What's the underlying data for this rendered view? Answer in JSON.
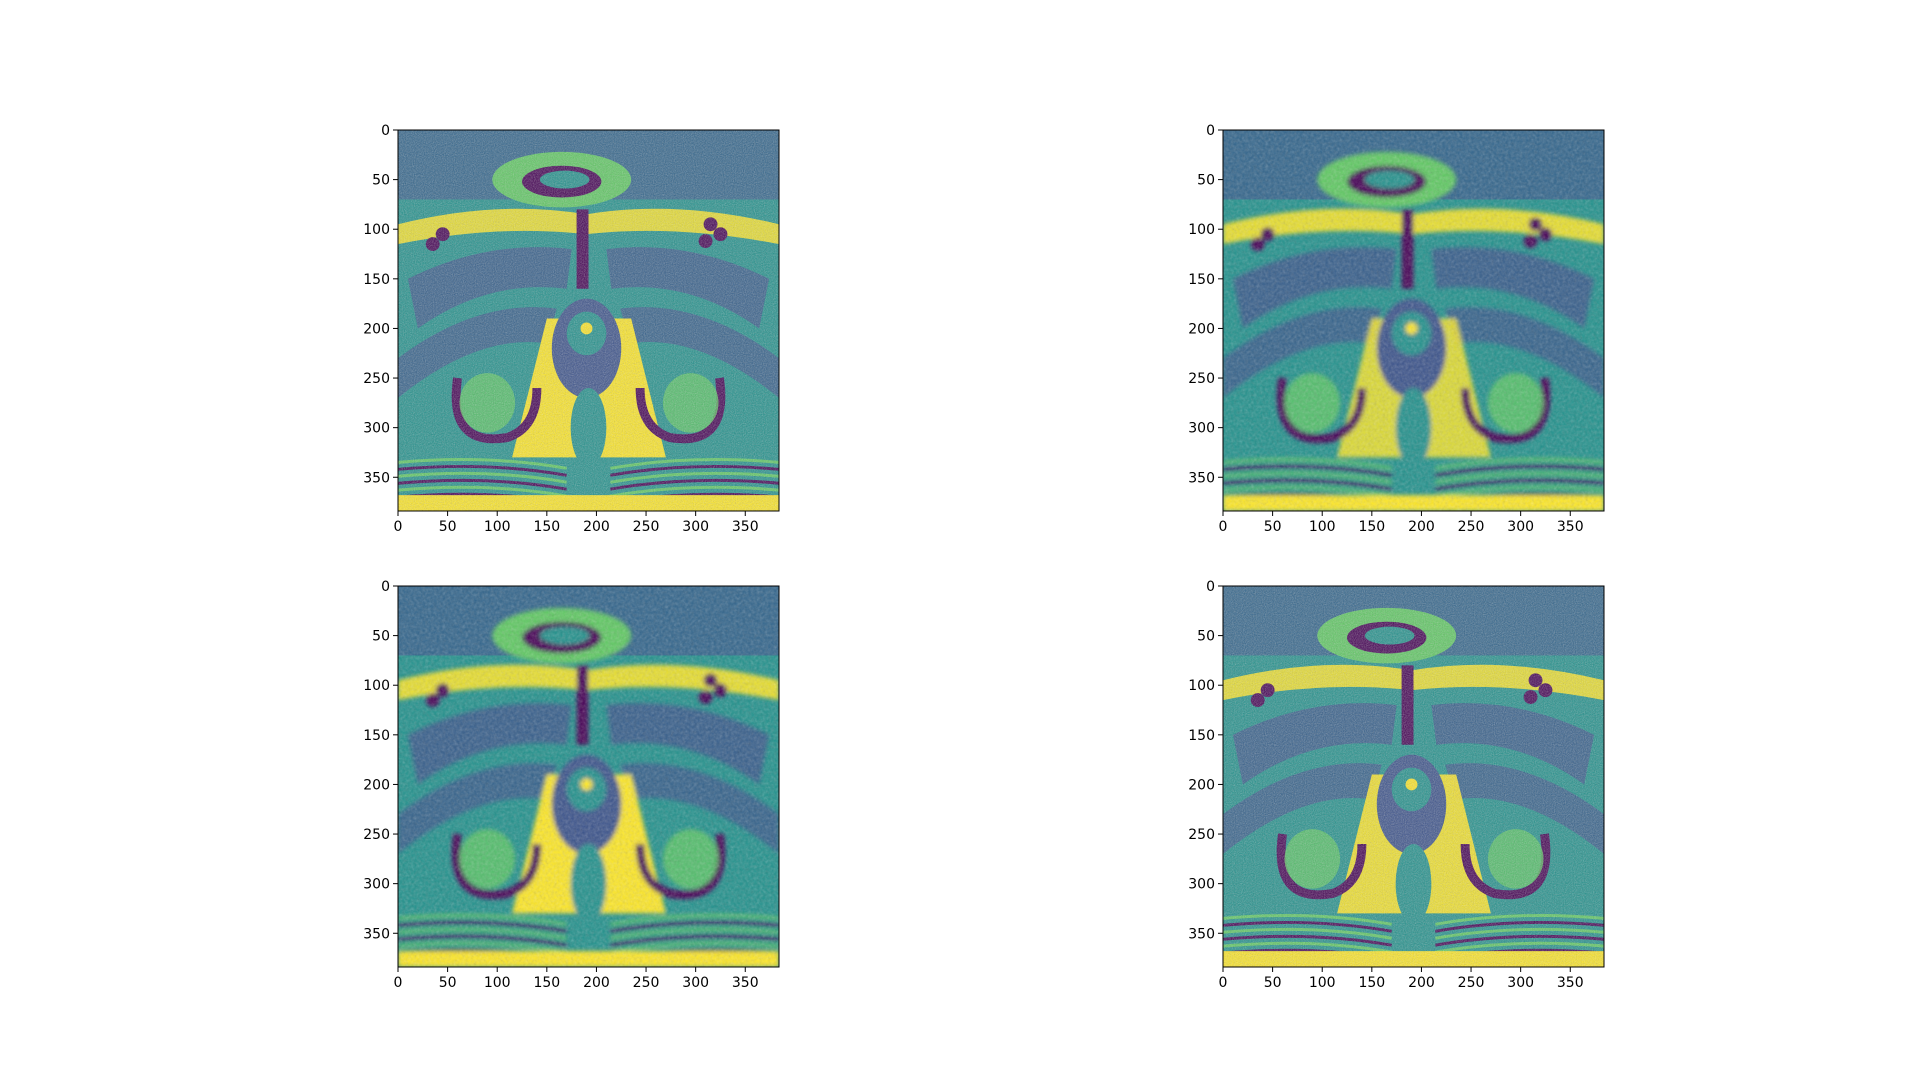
{
  "figure": {
    "layout": "2x2 grid of image panels",
    "colormap": "viridis",
    "colormap_colors": [
      "#440154",
      "#3b528b",
      "#21918c",
      "#5ec962",
      "#fde725"
    ]
  },
  "chart_data": [
    {
      "type": "heatmap",
      "panel": "top-left",
      "content": "axial MRI slice, viridis colormap, high-contrast noisy variant",
      "xlim": [
        0,
        384
      ],
      "ylim": [
        384,
        0
      ],
      "xticks": [
        "0",
        "50",
        "100",
        "150",
        "200",
        "250",
        "300",
        "350"
      ],
      "yticks": [
        "0",
        "50",
        "100",
        "150",
        "200",
        "250",
        "300",
        "350"
      ],
      "grid": false
    },
    {
      "type": "heatmap",
      "panel": "top-right",
      "content": "axial MRI slice, viridis colormap, smoothed variant",
      "xlim": [
        0,
        384
      ],
      "ylim": [
        384,
        0
      ],
      "xticks": [
        "0",
        "50",
        "100",
        "150",
        "200",
        "250",
        "300",
        "350"
      ],
      "yticks": [
        "0",
        "50",
        "100",
        "150",
        "200",
        "250",
        "300",
        "350"
      ],
      "grid": false
    },
    {
      "type": "heatmap",
      "panel": "bottom-left",
      "content": "axial MRI slice, viridis colormap, bright smoothed variant",
      "xlim": [
        0,
        384
      ],
      "ylim": [
        384,
        0
      ],
      "xticks": [
        "0",
        "50",
        "100",
        "150",
        "200",
        "250",
        "300",
        "350"
      ],
      "yticks": [
        "0",
        "50",
        "100",
        "150",
        "200",
        "250",
        "300",
        "350"
      ],
      "grid": false
    },
    {
      "type": "heatmap",
      "panel": "bottom-right",
      "content": "axial MRI slice, viridis colormap, sharp noisy variant",
      "xlim": [
        0,
        384
      ],
      "ylim": [
        384,
        0
      ],
      "xticks": [
        "0",
        "50",
        "100",
        "150",
        "200",
        "250",
        "300",
        "350"
      ],
      "yticks": [
        "0",
        "50",
        "100",
        "150",
        "200",
        "250",
        "300",
        "350"
      ],
      "grid": false
    }
  ]
}
